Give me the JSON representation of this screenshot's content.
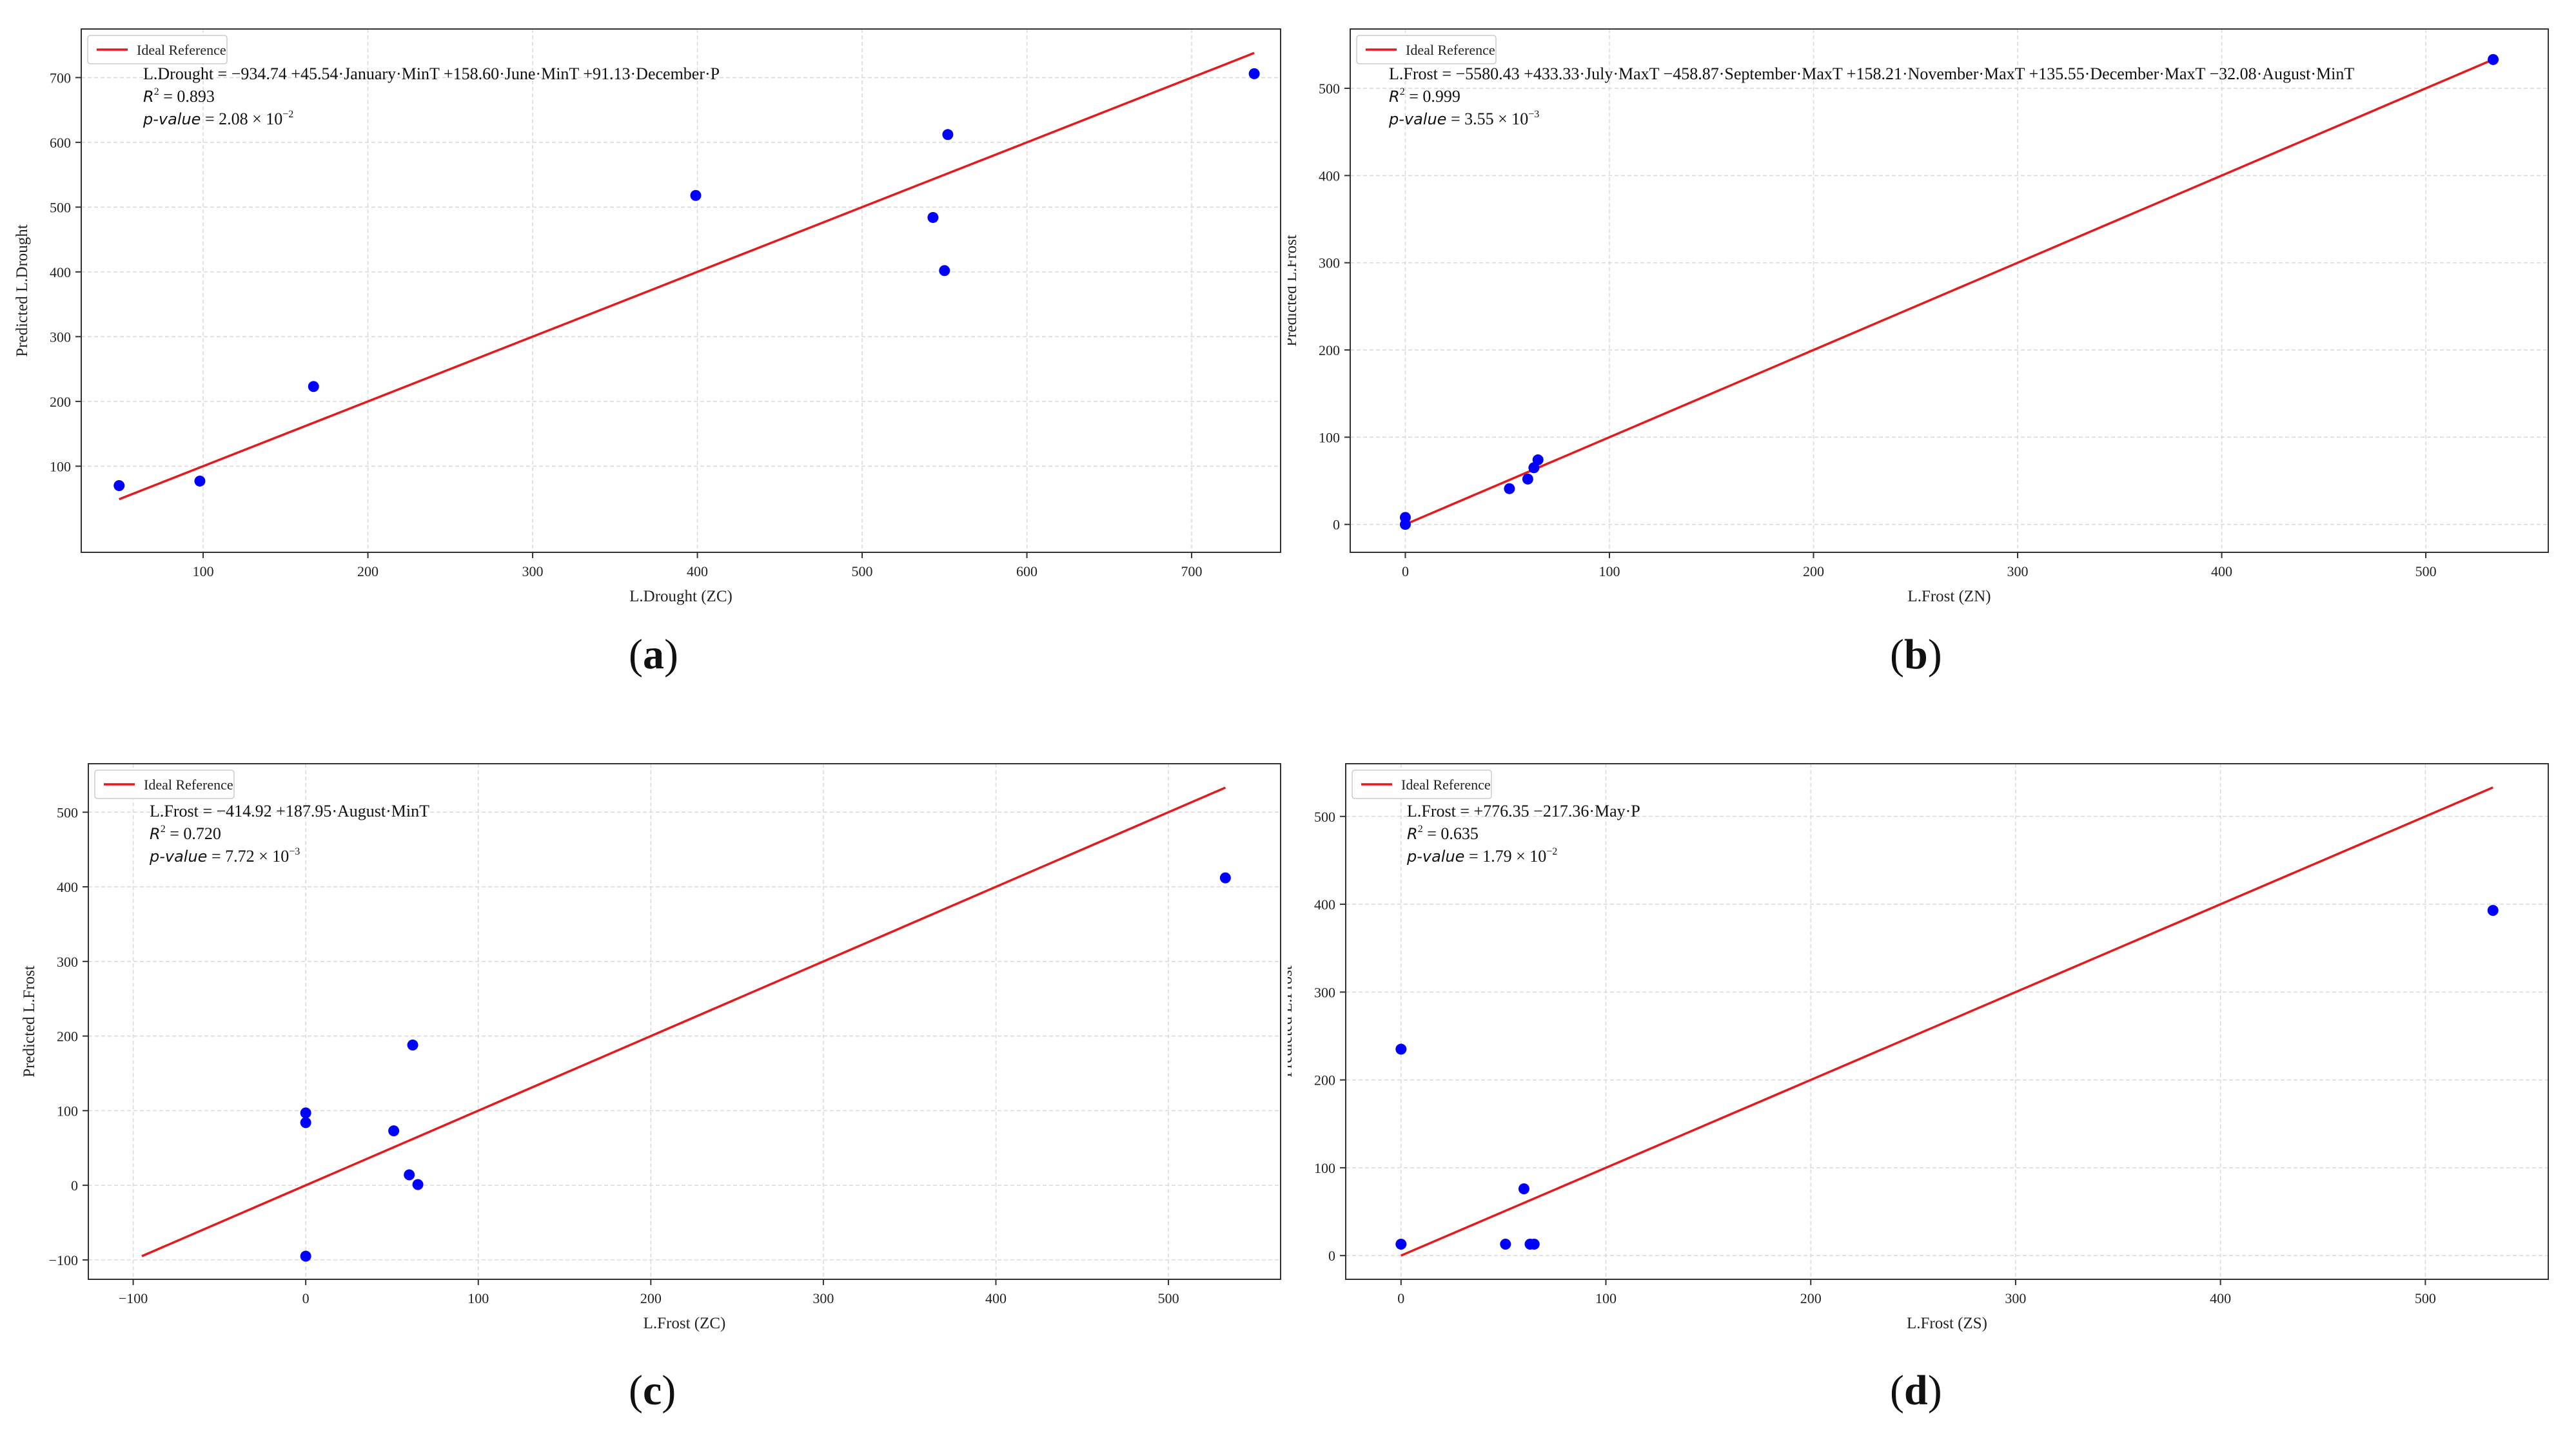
{
  "chart_data": [
    {
      "id": "a",
      "type": "scatter",
      "caption": "a",
      "xlabel": "L.Drought (ZC)",
      "ylabel": "Predicted L.Drought",
      "xlim": [
        26,
        754
      ],
      "ylim": [
        -33,
        775
      ],
      "xticks": [
        100,
        200,
        300,
        400,
        500,
        600,
        700
      ],
      "yticks": [
        100,
        200,
        300,
        400,
        500,
        600,
        700
      ],
      "grid": true,
      "legend": {
        "label": "Ideal Reference",
        "placement": "top-left",
        "color": "#e41a1c"
      },
      "reference_line": {
        "x": [
          49,
          738
        ],
        "y": [
          49,
          738
        ]
      },
      "points": [
        {
          "x": 49,
          "y": 70
        },
        {
          "x": 98,
          "y": 77
        },
        {
          "x": 167,
          "y": 223
        },
        {
          "x": 399,
          "y": 518
        },
        {
          "x": 543,
          "y": 484
        },
        {
          "x": 550,
          "y": 402
        },
        {
          "x": 552,
          "y": 612
        },
        {
          "x": 738,
          "y": 706
        }
      ],
      "annotation": {
        "equation": "L.Drought = −934.74 +45.54·January·MinT +158.60·June·MinT +91.13·December·P",
        "r2_label": "R",
        "r2_sup": "2",
        "r2_value": " = 0.893",
        "p_label": "p-value",
        "p_value": " = 2.08 × 10",
        "p_exp": "−2"
      }
    },
    {
      "id": "b",
      "type": "scatter",
      "caption": "b",
      "xlabel": "L.Frost (ZN)",
      "ylabel": "Predicted L.Frost",
      "xlim": [
        -27,
        560
      ],
      "ylim": [
        -32,
        568
      ],
      "xticks": [
        0,
        100,
        200,
        300,
        400,
        500
      ],
      "yticks": [
        0,
        100,
        200,
        300,
        400,
        500
      ],
      "grid": true,
      "legend": {
        "label": "Ideal Reference",
        "placement": "top-left",
        "color": "#e41a1c"
      },
      "reference_line": {
        "x": [
          0,
          533
        ],
        "y": [
          0,
          533
        ]
      },
      "points": [
        {
          "x": 0,
          "y": 0
        },
        {
          "x": 0,
          "y": 8
        },
        {
          "x": 51,
          "y": 41
        },
        {
          "x": 60,
          "y": 52
        },
        {
          "x": 63,
          "y": 65
        },
        {
          "x": 65,
          "y": 74
        },
        {
          "x": 533,
          "y": 533
        }
      ],
      "annotation": {
        "equation": "L.Frost = −5580.43 +433.33·July·MaxT −458.87·September·MaxT +158.21·November·MaxT +135.55·December·MaxT −32.08·August·MinT",
        "r2_label": "R",
        "r2_sup": "2",
        "r2_value": " = 0.999",
        "p_label": "p-value",
        "p_value": " = 3.55 × 10",
        "p_exp": "−3"
      }
    },
    {
      "id": "c",
      "type": "scatter",
      "caption": "c",
      "xlabel": "L.Frost (ZC)",
      "ylabel": "Predicted L.Frost",
      "xlim": [
        -126,
        565
      ],
      "ylim": [
        -126,
        565
      ],
      "xticks": [
        -100,
        0,
        100,
        200,
        300,
        400,
        500
      ],
      "yticks": [
        -100,
        0,
        100,
        200,
        300,
        400,
        500
      ],
      "grid": true,
      "legend": {
        "label": "Ideal Reference",
        "placement": "top-left",
        "color": "#e41a1c"
      },
      "reference_line": {
        "x": [
          -95,
          533
        ],
        "y": [
          -95,
          533
        ]
      },
      "points": [
        {
          "x": 0,
          "y": -95
        },
        {
          "x": 0,
          "y": 84
        },
        {
          "x": 0,
          "y": 97
        },
        {
          "x": 51,
          "y": 73
        },
        {
          "x": 60,
          "y": 14
        },
        {
          "x": 62,
          "y": 188
        },
        {
          "x": 65,
          "y": 1
        },
        {
          "x": 533,
          "y": 412
        }
      ],
      "annotation": {
        "equation": "L.Frost = −414.92 +187.95·August·MinT",
        "r2_label": "R",
        "r2_sup": "2",
        "r2_value": " = 0.720",
        "p_label": "p-value",
        "p_value": " = 7.72 × 10",
        "p_exp": "−3"
      }
    },
    {
      "id": "d",
      "type": "scatter",
      "caption": "d",
      "xlabel": "L.Frost (ZS)",
      "ylabel": "Predicted L.Frost",
      "xlim": [
        -27,
        560
      ],
      "ylim": [
        -27,
        560
      ],
      "xticks": [
        0,
        100,
        200,
        300,
        400,
        500
      ],
      "yticks": [
        0,
        100,
        200,
        300,
        400,
        500
      ],
      "grid": true,
      "legend": {
        "label": "Ideal Reference",
        "placement": "top-left",
        "color": "#e41a1c"
      },
      "reference_line": {
        "x": [
          0,
          533
        ],
        "y": [
          0,
          533
        ]
      },
      "points": [
        {
          "x": 0,
          "y": 13
        },
        {
          "x": 0,
          "y": 235
        },
        {
          "x": 51,
          "y": 13
        },
        {
          "x": 60,
          "y": 76
        },
        {
          "x": 63,
          "y": 13
        },
        {
          "x": 65,
          "y": 13
        },
        {
          "x": 533,
          "y": 393
        }
      ],
      "annotation": {
        "equation": "L.Frost = +776.35 −217.36·May·P",
        "r2_label": "R",
        "r2_sup": "2",
        "r2_value": " = 0.635",
        "p_label": "p-value",
        "p_value": " = 1.79 × 10",
        "p_exp": "−2"
      }
    }
  ],
  "colors": {
    "points": "#0000ff",
    "reference": "#e41a1c",
    "grid": "#d9d9d9",
    "axis": "#333333"
  }
}
